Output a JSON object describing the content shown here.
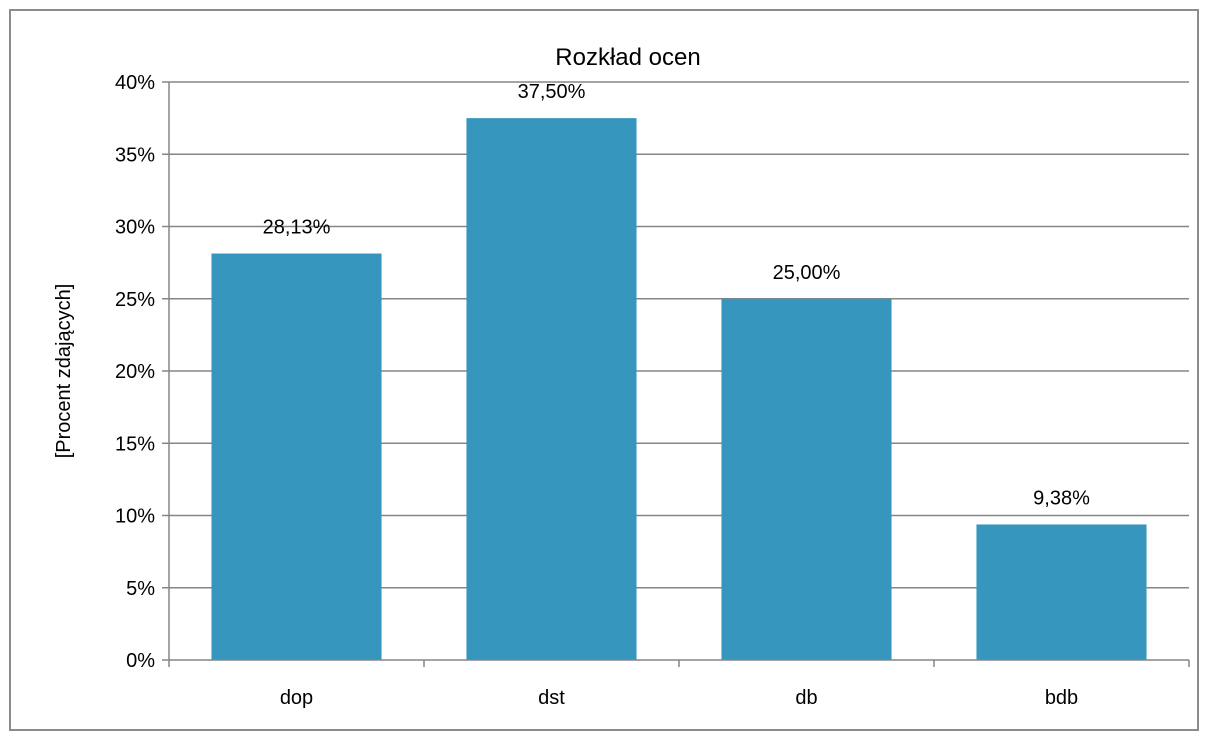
{
  "chart_data": {
    "type": "bar",
    "title": "Rozkład ocen",
    "xlabel": "",
    "ylabel": "[Procent zdających]",
    "categories": [
      "dop",
      "dst",
      "db",
      "bdb"
    ],
    "values": [
      28.13,
      37.5,
      25.0,
      9.38
    ],
    "data_labels": [
      "28,13%",
      "37,50%",
      "25,00%",
      "9,38%"
    ],
    "ylim": [
      0,
      40
    ],
    "yticks": [
      0,
      5,
      10,
      15,
      20,
      25,
      30,
      35,
      40
    ],
    "ytick_labels": [
      "0%",
      "5%",
      "10%",
      "15%",
      "20%",
      "25%",
      "30%",
      "35%",
      "40%"
    ],
    "grid": true,
    "legend": "none",
    "bar_color": "#3796bd",
    "gridline_color": "#868686"
  }
}
